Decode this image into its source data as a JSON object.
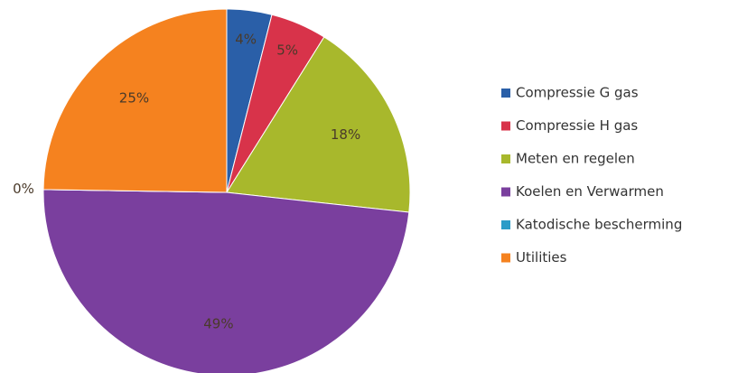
{
  "chart_data": {
    "type": "pie",
    "categories": [
      "Compressie G gas",
      "Compressie H gas",
      "Meten en regelen",
      "Koelen en Verwarmen",
      "Katodische bescherming",
      "Utilities"
    ],
    "values": [
      4,
      5,
      18,
      49,
      0,
      25
    ],
    "colors": [
      "#2a5fa8",
      "#d8334a",
      "#a8b82c",
      "#7a3f9e",
      "#2b9cc8",
      "#f5821f"
    ],
    "value_labels": [
      "4%",
      "5%",
      "18%",
      "49%",
      "0%",
      "25%"
    ],
    "legend": "right"
  }
}
